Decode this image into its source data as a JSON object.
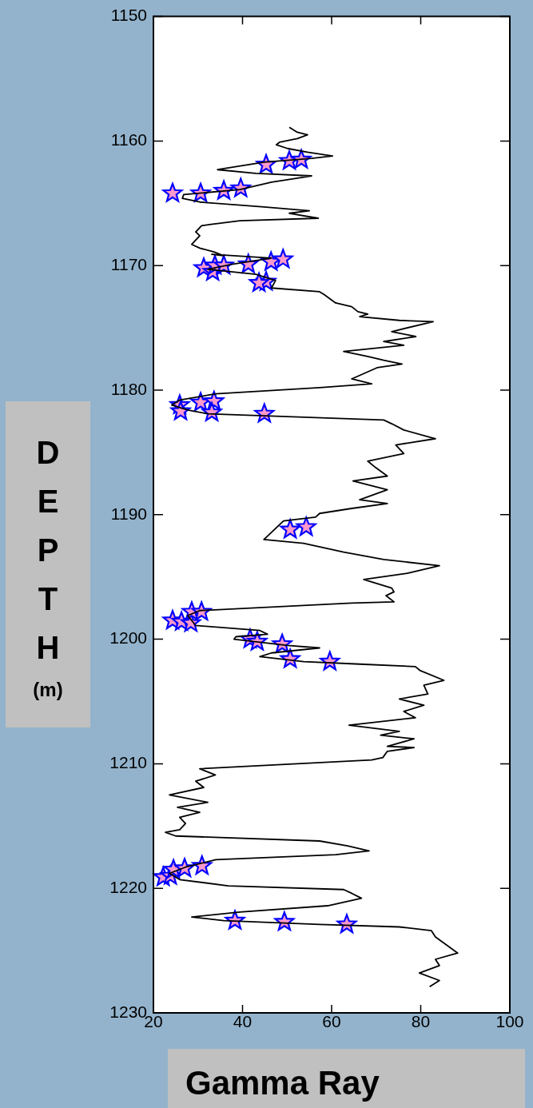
{
  "chart_data": {
    "type": "line",
    "ylabel": "DEPTH (m)",
    "xlabel": "Gamma Ray",
    "xlim": [
      20,
      100
    ],
    "xticks": [
      20,
      40,
      60,
      80,
      100
    ],
    "ylim": [
      1230,
      1150
    ],
    "yticks": [
      1150,
      1160,
      1170,
      1180,
      1190,
      1200,
      1210,
      1220,
      1230
    ],
    "series": [
      {
        "type": "line",
        "color": "#000000",
        "marker": "none",
        "x": [
          50.5,
          52.3,
          54.6,
          52.3,
          48.3,
          47.6,
          50.1,
          54.6,
          60.2,
          55.5,
          44.8,
          34.4,
          43.0,
          55.5,
          46.5,
          39.4,
          26.8,
          26.5,
          30.4,
          44.8,
          55.0,
          50.5,
          57.0,
          39.4,
          32.6,
          30.8,
          29.5,
          30.4,
          28.6,
          30.4,
          33.6,
          35.7,
          33.1,
          46.5,
          37.6,
          32.2,
          43.0,
          47.4,
          46.5,
          57.3,
          58.2,
          60.9,
          64.5,
          65.9,
          68.1,
          66.3,
          75.2,
          82.8,
          73.5,
          78.9,
          71.7,
          76.2,
          62.7,
          68.1,
          71.7,
          75.8,
          70.2,
          64.5,
          69.0,
          57.3,
          34.0,
          25.9,
          24.1,
          27.7,
          32.2,
          71.7,
          73.5,
          76.2,
          83.3,
          74.4,
          76.2,
          68.1,
          69.8,
          72.5,
          64.8,
          72.5,
          66.3,
          72.5,
          64.5,
          57.3,
          56.4,
          49.2,
          44.8,
          53.7,
          62.7,
          71.7,
          84.2,
          77.0,
          67.2,
          73.5,
          74.0,
          72.2,
          74.0,
          64.5,
          30.4,
          27.7,
          29.5,
          43.9,
          45.6,
          38.5,
          38.1,
          50.1,
          57.3,
          46.5,
          43.9,
          53.7,
          66.3,
          78.8,
          79.8,
          85.2,
          80.7,
          81.6,
          75.2,
          80.7,
          76.2,
          78.8,
          63.9,
          75.2,
          71.0,
          78.5,
          72.5,
          78.5,
          72.5,
          71.5,
          69.0,
          30.4,
          33.9,
          29.5,
          31.3,
          23.6,
          32.2,
          25.4,
          30.4,
          25.9,
          27.2,
          25.9,
          22.7,
          25.0,
          57.3,
          63.6,
          68.4,
          60.9,
          34.0,
          27.2,
          23.6,
          25.9,
          36.8,
          62.7,
          64.5,
          66.7,
          59.1,
          39.4,
          28.6,
          35.8,
          57.3,
          75.2,
          82.4,
          83.3,
          88.3,
          83.3,
          84.2,
          79.7,
          84.2,
          82.0
        ],
        "values": [
          1158.9,
          1159.3,
          1159.5,
          1159.8,
          1160.1,
          1160.3,
          1160.6,
          1160.9,
          1161.2,
          1161.4,
          1161.7,
          1162.3,
          1162.6,
          1162.8,
          1163.3,
          1163.9,
          1164.3,
          1164.6,
          1164.9,
          1165.3,
          1165.6,
          1165.8,
          1166.2,
          1166.4,
          1166.7,
          1166.8,
          1167.3,
          1167.6,
          1168.3,
          1168.6,
          1168.9,
          1169.2,
          1169.1,
          1169.4,
          1169.9,
          1170.3,
          1170.7,
          1171.2,
          1171.8,
          1172.1,
          1172.3,
          1173.0,
          1173.3,
          1173.7,
          1173.9,
          1174.1,
          1174.4,
          1174.5,
          1175.3,
          1175.7,
          1176.1,
          1176.4,
          1176.9,
          1177.3,
          1177.6,
          1177.9,
          1178.2,
          1179.1,
          1179.5,
          1179.8,
          1180.3,
          1180.8,
          1181.2,
          1181.6,
          1181.9,
          1182.4,
          1182.7,
          1183.2,
          1183.9,
          1184.4,
          1185.1,
          1185.7,
          1186.2,
          1186.9,
          1187.3,
          1188.0,
          1188.8,
          1189.1,
          1189.5,
          1189.9,
          1190.2,
          1190.5,
          1192.0,
          1192.3,
          1193.0,
          1193.6,
          1194.1,
          1194.7,
          1195.2,
          1195.9,
          1196.2,
          1196.5,
          1197.0,
          1197.1,
          1197.7,
          1198.1,
          1198.9,
          1199.3,
          1199.6,
          1199.8,
          1200.0,
          1200.5,
          1200.7,
          1201.1,
          1201.4,
          1201.8,
          1202.0,
          1202.2,
          1202.5,
          1203.3,
          1203.7,
          1204.4,
          1204.8,
          1205.3,
          1205.8,
          1206.3,
          1206.9,
          1207.4,
          1207.7,
          1208.0,
          1208.6,
          1208.7,
          1209.0,
          1209.5,
          1209.7,
          1210.4,
          1210.9,
          1211.4,
          1211.9,
          1212.5,
          1213.1,
          1213.5,
          1213.9,
          1214.3,
          1214.8,
          1215.3,
          1215.5,
          1215.8,
          1216.2,
          1216.6,
          1217.0,
          1217.3,
          1217.7,
          1218.3,
          1218.8,
          1219.3,
          1219.8,
          1220.1,
          1220.4,
          1220.8,
          1221.4,
          1221.9,
          1222.3,
          1222.6,
          1222.9,
          1223.1,
          1223.4,
          1223.9,
          1225.2,
          1225.7,
          1226.2,
          1226.8,
          1227.4,
          1227.9
        ]
      },
      {
        "type": "scatter",
        "color": "#ff99cc",
        "marker": "star",
        "x": [
          45.3,
          50.5,
          53.2,
          24.3,
          30.6,
          35.8,
          39.6,
          31.3,
          33.3,
          33.8,
          35.8,
          41.3,
          46.4,
          49.1,
          45.3,
          43.7,
          25.9,
          26.1,
          30.6,
          33.6,
          33.1,
          44.9,
          50.7,
          54.3,
          24.3,
          26.3,
          28.4,
          28.6,
          30.8,
          41.7,
          43.3,
          48.9,
          50.7,
          59.6,
          22.2,
          23.8,
          24.5,
          27.0,
          30.9,
          38.3,
          49.4,
          63.4
        ],
        "values": [
          1161.9,
          1161.6,
          1161.5,
          1164.2,
          1164.2,
          1164.0,
          1163.8,
          1170.2,
          1170.5,
          1170.0,
          1170.0,
          1169.9,
          1169.7,
          1169.5,
          1171.3,
          1171.4,
          1181.2,
          1181.7,
          1181.0,
          1180.9,
          1181.8,
          1181.9,
          1191.2,
          1191.0,
          1198.5,
          1198.6,
          1198.7,
          1197.8,
          1197.8,
          1200.0,
          1200.2,
          1200.4,
          1201.6,
          1201.8,
          1219.1,
          1219.0,
          1218.5,
          1218.4,
          1218.2,
          1222.6,
          1222.7,
          1222.9
        ]
      }
    ]
  }
}
